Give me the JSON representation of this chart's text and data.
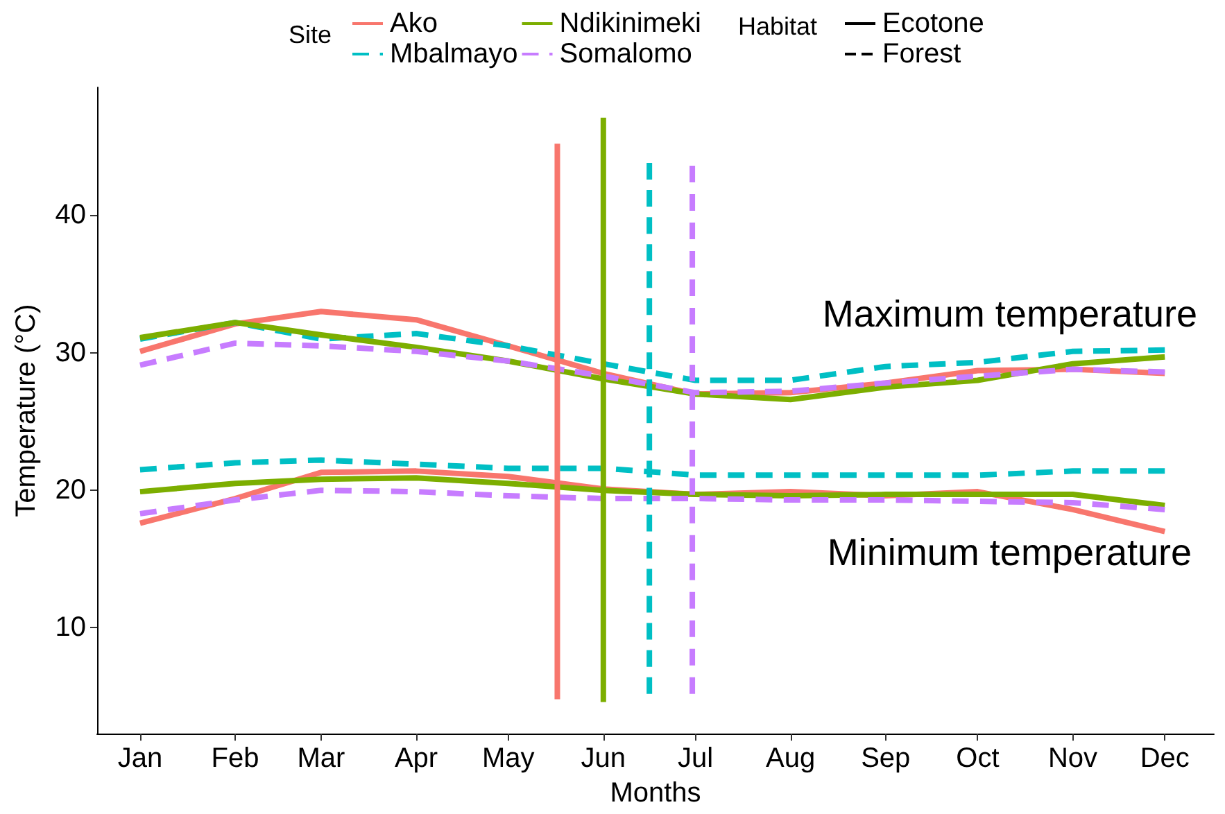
{
  "chart_data": {
    "type": "line",
    "xlabel": "Months",
    "ylabel": "Temperature (°C)",
    "legend_title": "Site",
    "x": [
      "--01-15",
      "--02-15",
      "--03-15",
      "--04-15",
      "--05-15",
      "--06-15",
      "--07-15",
      "--08-15",
      "--09-15",
      "--10-15",
      "--11-15",
      "--12-15"
    ],
    "xlim": [
      "--01-01",
      "--12-31"
    ],
    "xticks": [
      {
        "value": "--01-15",
        "label": "Jan"
      },
      {
        "value": "--02-15",
        "label": "Feb"
      },
      {
        "value": "--03-15",
        "label": "Mar"
      },
      {
        "value": "--04-15",
        "label": "Apr"
      },
      {
        "value": "--05-15",
        "label": "May"
      },
      {
        "value": "--06-15",
        "label": "Jun"
      },
      {
        "value": "--07-15",
        "label": "Jul"
      },
      {
        "value": "--08-15",
        "label": "Aug"
      },
      {
        "value": "--09-15",
        "label": "Sep"
      },
      {
        "value": "--10-15",
        "label": "Oct"
      },
      {
        "value": "--11-15",
        "label": "Nov"
      },
      {
        "value": "--12-15",
        "label": "Dec"
      }
    ],
    "ylim": [
      2.3,
      49.3
    ],
    "yticks": [
      10,
      20,
      30,
      40
    ],
    "grid": false,
    "legend": "top",
    "marker": "none",
    "series": [
      {
        "name": "Ako",
        "color": "#f8766d",
        "line_style": "solid",
        "values": [
          30.1,
          32.1,
          33.0,
          32.4,
          30.5,
          28.5,
          27.0,
          27.1,
          27.8,
          28.7,
          28.8,
          28.5
        ]
      },
      {
        "name": "Mbalmayo",
        "color": "#00bfc4",
        "line_style": "dashed",
        "values": [
          31.0,
          32.2,
          31.0,
          31.4,
          30.5,
          29.2,
          28.0,
          28.0,
          29.0,
          29.3,
          30.1,
          30.2
        ]
      },
      {
        "name": "Ndikinimeki",
        "color": "#7cae00",
        "line_style": "solid",
        "values": [
          31.1,
          32.2,
          31.3,
          30.4,
          29.4,
          28.1,
          27.0,
          26.6,
          27.5,
          28.0,
          29.2,
          29.7
        ]
      },
      {
        "name": "Somalomo",
        "color": "#c77cff",
        "line_style": "dashed",
        "values": [
          29.1,
          30.7,
          30.5,
          30.1,
          29.4,
          28.3,
          27.1,
          27.2,
          27.8,
          28.3,
          28.8,
          28.6
        ]
      },
      {
        "color": "#f8766d",
        "line_style": "solid",
        "values": [
          17.6,
          19.4,
          21.3,
          21.4,
          21.0,
          20.1,
          19.7,
          19.9,
          19.6,
          19.9,
          18.6,
          17.0
        ]
      },
      {
        "color": "#00bfc4",
        "line_style": "dashed",
        "values": [
          21.5,
          22.0,
          22.2,
          21.9,
          21.6,
          21.6,
          21.1,
          21.1,
          21.1,
          21.1,
          21.4,
          21.4
        ]
      },
      {
        "color": "#7cae00",
        "line_style": "solid",
        "values": [
          19.9,
          20.5,
          20.8,
          20.9,
          20.5,
          20.0,
          19.7,
          19.6,
          19.7,
          19.7,
          19.7,
          18.9
        ]
      },
      {
        "color": "#c77cff",
        "line_style": "dashed",
        "values": [
          18.3,
          19.3,
          20.0,
          19.9,
          19.6,
          19.4,
          19.4,
          19.3,
          19.3,
          19.2,
          19.1,
          18.6
        ]
      },
      {
        "color": "#f8766d",
        "line_style": "solid",
        "x": [
          "--05-31",
          "--05-31"
        ],
        "values": [
          4.8,
          45.2
        ]
      },
      {
        "color": "#7cae00",
        "line_style": "solid",
        "x": [
          "--06-15",
          "--06-15"
        ],
        "values": [
          4.6,
          47.1
        ]
      },
      {
        "color": "#00bfc4",
        "line_style": "dashed",
        "x": [
          "--06-30",
          "--06-30"
        ],
        "values": [
          5.2,
          43.8
        ]
      },
      {
        "color": "#c77cff",
        "line_style": "dashed",
        "x": [
          "--07-14",
          "--07-14"
        ],
        "values": [
          5.2,
          43.6
        ]
      },
      {
        "name": "Ecotone",
        "color": "#000000",
        "line_style": "solid",
        "values": [
          null,
          null,
          null,
          null,
          null,
          null,
          null,
          null,
          null,
          null,
          null,
          null
        ]
      },
      {
        "name": "Forest",
        "color": "#000000",
        "line_style": "dashed",
        "values": [
          null,
          null,
          null,
          null,
          null,
          null,
          null,
          null,
          null,
          null,
          null,
          null
        ]
      }
    ],
    "annotations": [
      "Habitat",
      "Maximum temperature",
      "Minimum temperature"
    ]
  }
}
